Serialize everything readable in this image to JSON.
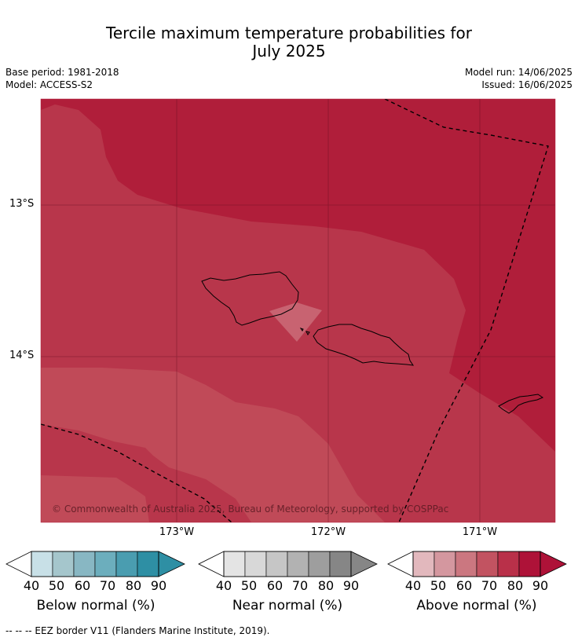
{
  "header": {
    "title_line1": "Tercile maximum temperature probabilities for",
    "title_line2": "July 2025",
    "base_period": "Base period: 1981-2018",
    "model": "Model: ACCESS-S2",
    "model_run": "Model run: 14/06/2025",
    "issued": "Issued: 16/06/2025"
  },
  "map": {
    "lat_labels": [
      "13°S",
      "14°S"
    ],
    "lon_labels": [
      "173°W",
      "172°W",
      "171°W"
    ],
    "credit": "© Commonwealth of Australia 2025, Bureau of Meteorology, supported by COSPPac"
  },
  "legends": [
    {
      "label": "Below normal (%)",
      "ticks": [
        "40",
        "50",
        "60",
        "70",
        "80",
        "90"
      ],
      "colors": [
        "#c8e0e7",
        "#a5c6cc",
        "#88b7c3",
        "#6caebd",
        "#4a9db0",
        "#2e8fa4"
      ]
    },
    {
      "label": "Near normal (%)",
      "ticks": [
        "40",
        "50",
        "60",
        "70",
        "80",
        "90"
      ],
      "colors": [
        "#e4e4e4",
        "#d8d8d8",
        "#c6c6c6",
        "#b2b2b2",
        "#9e9e9e",
        "#868686"
      ]
    },
    {
      "label": "Above normal (%)",
      "ticks": [
        "40",
        "50",
        "60",
        "70",
        "80",
        "90"
      ],
      "colors": [
        "#e2b8bd",
        "#d4979f",
        "#cb7780",
        "#c25361",
        "#b93049",
        "#ae1238"
      ]
    }
  ],
  "footnote": "--  --  -- EEZ border V11 (Flanders Marine Institute, 2019).",
  "colors": {
    "zone_70_80": "#c04a58",
    "zone_80_90": "#b8364b",
    "zone_90_plus": "#b01e3a",
    "zone_60_70": "#c86371"
  }
}
